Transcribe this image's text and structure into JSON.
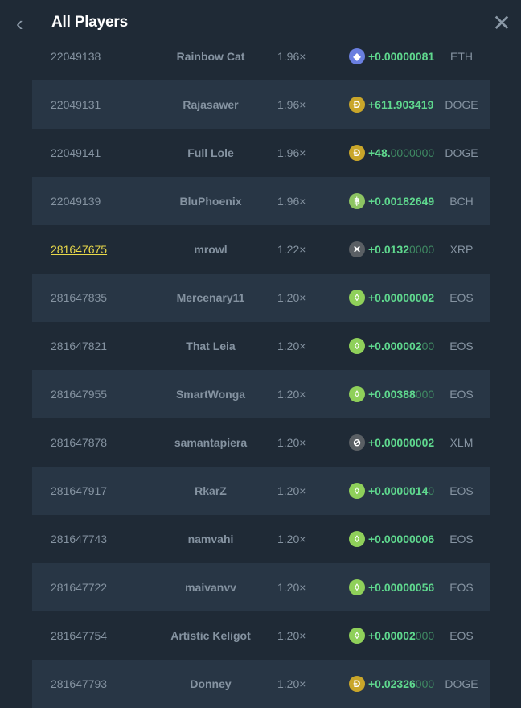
{
  "header": {
    "title": "All Players",
    "back_icon": "chevron-left-icon",
    "close_icon": "close-icon"
  },
  "colors": {
    "background": "#1f2a36",
    "stripe": "#283645",
    "amount": "#5fd88e",
    "highlight_id": "#e8d84a"
  },
  "coins": {
    "ETH": {
      "icon": "ethereum-icon",
      "color": "#6a7fe0",
      "glyph": "◆"
    },
    "DOGE": {
      "icon": "dogecoin-icon",
      "color": "#c9a62a",
      "glyph": "Đ"
    },
    "BCH": {
      "icon": "bitcoin-cash-icon",
      "color": "#8dc462",
      "glyph": "฿"
    },
    "XRP": {
      "icon": "xrp-icon",
      "color": "#5a5f64",
      "glyph": "✕"
    },
    "EOS": {
      "icon": "eos-icon",
      "color": "#8fd05a",
      "glyph": "◊"
    },
    "XLM": {
      "icon": "stellar-icon",
      "color": "#5a5f64",
      "glyph": "⊘"
    }
  },
  "players": [
    {
      "id": "22049138",
      "name": "Rainbow Cat",
      "multiplier": "1.96×",
      "amount_main": "+0.00000081",
      "amount_dim": "",
      "currency": "ETH"
    },
    {
      "id": "22049131",
      "name": "Rajasawer",
      "multiplier": "1.96×",
      "amount_main": "+611.903419",
      "amount_dim": "",
      "currency": "DOGE"
    },
    {
      "id": "22049141",
      "name": "Full Lole",
      "multiplier": "1.96×",
      "amount_main": "+48.",
      "amount_dim": "0000000",
      "currency": "DOGE"
    },
    {
      "id": "22049139",
      "name": "BluPhoenix",
      "multiplier": "1.96×",
      "amount_main": "+0.00182649",
      "amount_dim": "",
      "currency": "BCH"
    },
    {
      "id": "281647675",
      "name": "mrowl",
      "multiplier": "1.22×",
      "amount_main": "+0.0132",
      "amount_dim": "0000",
      "currency": "XRP",
      "highlight": true
    },
    {
      "id": "281647835",
      "name": "Mercenary11",
      "multiplier": "1.20×",
      "amount_main": "+0.00000002",
      "amount_dim": "",
      "currency": "EOS"
    },
    {
      "id": "281647821",
      "name": "That Leia",
      "multiplier": "1.20×",
      "amount_main": "+0.000002",
      "amount_dim": "00",
      "currency": "EOS"
    },
    {
      "id": "281647955",
      "name": "SmartWonga",
      "multiplier": "1.20×",
      "amount_main": "+0.00388",
      "amount_dim": "000",
      "currency": "EOS"
    },
    {
      "id": "281647878",
      "name": "samantapiera",
      "multiplier": "1.20×",
      "amount_main": "+0.00000002",
      "amount_dim": "",
      "currency": "XLM"
    },
    {
      "id": "281647917",
      "name": "RkarZ",
      "multiplier": "1.20×",
      "amount_main": "+0.0000014",
      "amount_dim": "0",
      "currency": "EOS"
    },
    {
      "id": "281647743",
      "name": "namvahi",
      "multiplier": "1.20×",
      "amount_main": "+0.00000006",
      "amount_dim": "",
      "currency": "EOS"
    },
    {
      "id": "281647722",
      "name": "maivanvv",
      "multiplier": "1.20×",
      "amount_main": "+0.00000056",
      "amount_dim": "",
      "currency": "EOS"
    },
    {
      "id": "281647754",
      "name": "Artistic Keligot",
      "multiplier": "1.20×",
      "amount_main": "+0.00002",
      "amount_dim": "000",
      "currency": "EOS"
    },
    {
      "id": "281647793",
      "name": "Donney",
      "multiplier": "1.20×",
      "amount_main": "+0.02326",
      "amount_dim": "000",
      "currency": "DOGE"
    }
  ]
}
